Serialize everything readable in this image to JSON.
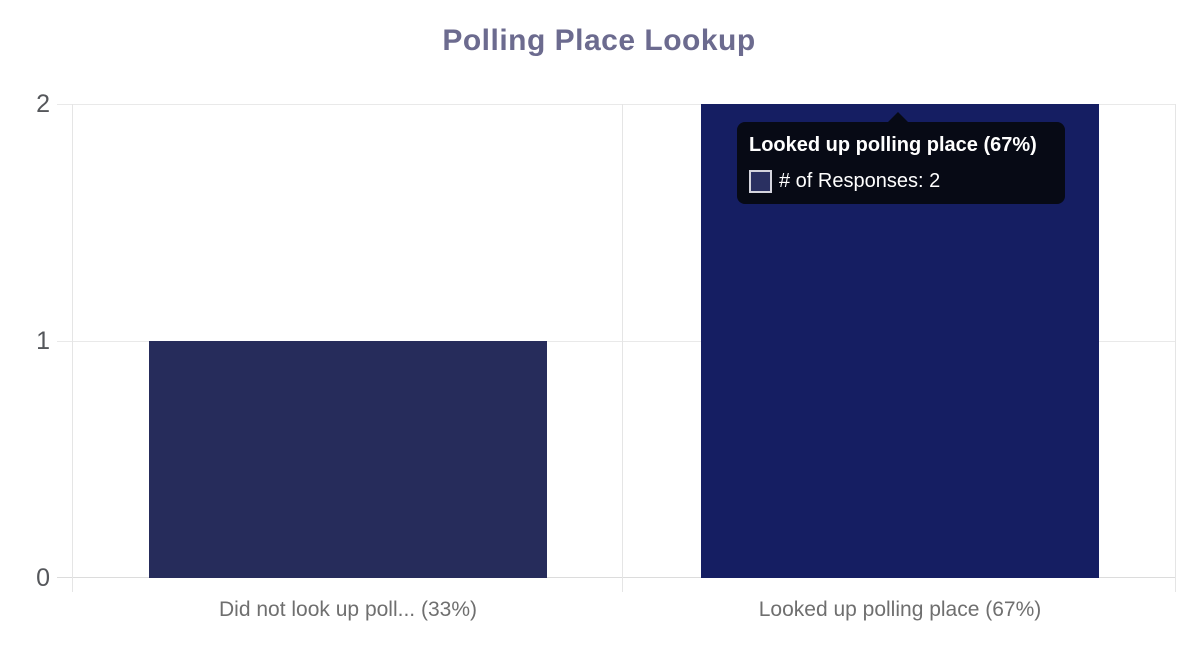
{
  "chart_data": {
    "type": "bar",
    "title": "Polling Place Lookup",
    "categories": [
      "Did not look up poll... (33%)",
      "Looked up polling place (67%)"
    ],
    "series": [
      {
        "name": "# of Responses",
        "values": [
          1,
          2
        ]
      }
    ],
    "ylim": [
      0,
      2
    ],
    "ytick_labels": [
      "0",
      "1",
      "2"
    ],
    "grid": true,
    "legend": "none",
    "bar_colors": [
      "#262c5b",
      "#151e62"
    ],
    "title_color": "#6c6b8f",
    "tick_label_color": "#55575b",
    "category_label_color": "#6f6f6f",
    "grid_color": "#e9e9e9"
  },
  "tooltip": {
    "title": "Looked up polling place (67%)",
    "series_label": "# of Responses",
    "value": "2",
    "line": "# of Responses: 2",
    "bg_color": "#070a15",
    "swatch_fill": "#2a3061",
    "swatch_border": "#d4d4dd"
  }
}
